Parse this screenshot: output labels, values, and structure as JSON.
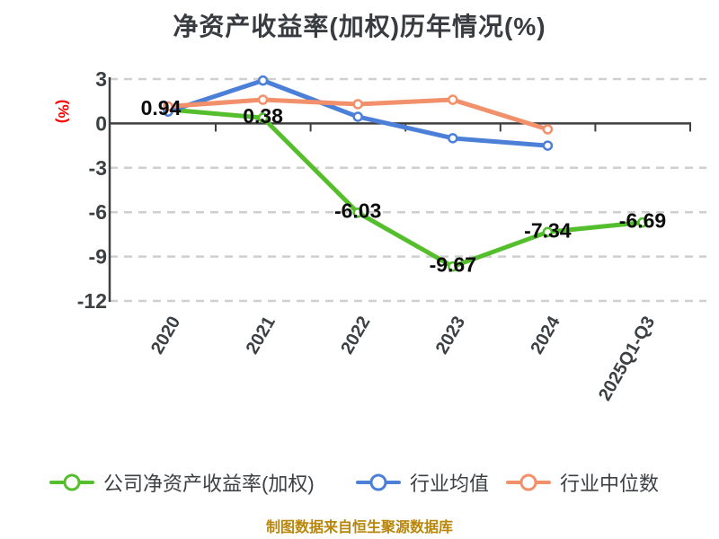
{
  "title": "净资产收益率(加权)历年情况(%)",
  "footer": "制图数据来自恒生聚源数据库",
  "colors": {
    "company": "#55be2d",
    "industry_avg": "#4c80d8",
    "industry_median": "#f1906b",
    "grid": "#cfcfcf",
    "axis": "#3f3f3f",
    "ylabel_red": "#ff0000",
    "text_dark": "#3c4043",
    "footer_gold": "#b8860b"
  },
  "chart_data": {
    "type": "line",
    "title": "净资产收益率(加权)历年情况(%)",
    "categories": [
      "2020",
      "2021",
      "2022",
      "2023",
      "2024",
      "2025Q1-Q3"
    ],
    "series": [
      {
        "id": "company-roe",
        "name": "公司净资产收益率(加权)",
        "color": "#55be2d",
        "values": [
          0.94,
          0.38,
          -6.03,
          -9.67,
          -7.34,
          -6.69
        ],
        "data_labels": [
          "0.94",
          "0.38",
          "-6.03",
          "-9.67",
          "-7.34",
          "-6.69"
        ]
      },
      {
        "id": "industry-avg",
        "name": "行业均值",
        "color": "#4c80d8",
        "values": [
          0.8,
          2.9,
          0.45,
          -1.0,
          -1.5,
          null
        ]
      },
      {
        "id": "industry-median",
        "name": "行业中位数",
        "color": "#f1906b",
        "values": [
          1.15,
          1.6,
          1.3,
          1.6,
          -0.4,
          null
        ]
      }
    ],
    "ylabel": "(%)",
    "y_ticks": [
      3,
      0,
      -3,
      -6,
      -9,
      -12
    ],
    "ylim": [
      -12,
      3
    ],
    "grid": "horizontal-dashed",
    "legend_position": "bottom",
    "marker": "white-filled-circle"
  },
  "legend": {
    "items": [
      {
        "label": "公司净资产收益率(加权)",
        "color": "#55be2d"
      },
      {
        "label": "行业均值",
        "color": "#4c80d8"
      },
      {
        "label": "行业中位数",
        "color": "#f1906b"
      }
    ]
  }
}
